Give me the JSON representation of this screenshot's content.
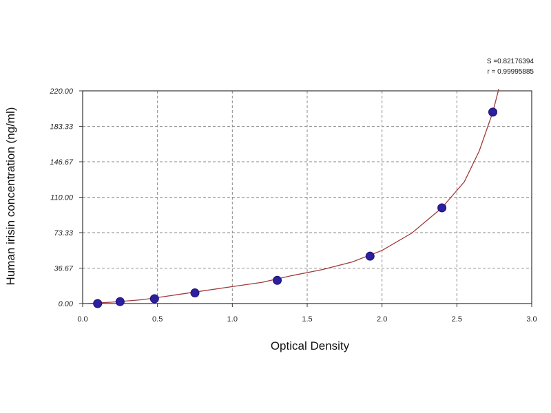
{
  "chart_data": {
    "type": "scatter",
    "xlabel": "Optical Density",
    "ylabel": "Human irisin concentration (ng/ml)",
    "xlim": [
      0,
      3
    ],
    "ylim": [
      0,
      220
    ],
    "x_ticks": [
      0,
      0.5,
      1,
      1.5,
      2,
      2.5,
      3
    ],
    "x_tick_labels": [
      "0.0",
      "0.5",
      "1.0",
      "1.5",
      "2.0",
      "2.5",
      "3.0"
    ],
    "y_ticks": [
      0,
      36.67,
      73.33,
      110,
      146.67,
      183.33,
      220
    ],
    "y_tick_labels": [
      "0.00",
      "36.67",
      "73.33",
      "110.00",
      "146.67",
      "183.33",
      "220.00"
    ],
    "grid": true,
    "annotations": [
      "S =0.82176394",
      "r = 0.99995885"
    ],
    "points": {
      "x": [
        0.1,
        0.25,
        0.48,
        0.75,
        1.3,
        1.92,
        2.4,
        2.74
      ],
      "y": [
        0,
        2,
        5,
        11,
        24,
        49,
        99,
        198
      ]
    },
    "curve": {
      "x": [
        0.02,
        0.2,
        0.4,
        0.6,
        0.8,
        1.0,
        1.2,
        1.4,
        1.6,
        1.8,
        2.0,
        2.2,
        2.4,
        2.55,
        2.65,
        2.74,
        2.78
      ],
      "y": [
        0,
        1.5,
        4,
        8.5,
        13,
        17.5,
        22,
        29,
        35,
        43,
        55,
        73,
        99,
        126,
        158,
        198,
        222
      ]
    },
    "colors": {
      "points": "#2d1fa0",
      "curve": "#a23a3a",
      "grid": "#8a8a8a",
      "axis": "#333333"
    }
  }
}
